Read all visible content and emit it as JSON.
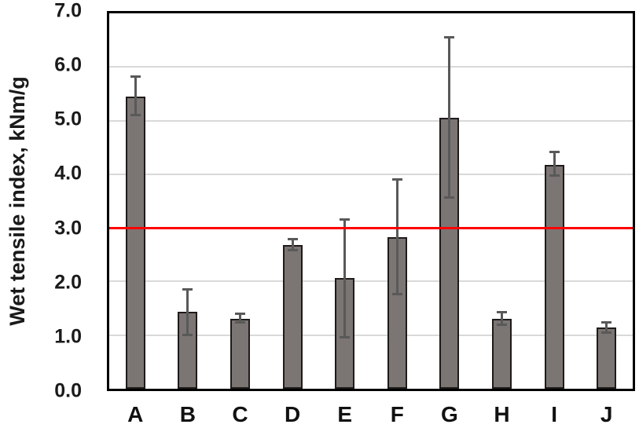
{
  "chart_data": {
    "type": "bar",
    "title": "",
    "categories": [
      "A",
      "B",
      "C",
      "D",
      "E",
      "F",
      "G",
      "H",
      "I",
      "J"
    ],
    "values": [
      5.45,
      1.43,
      1.31,
      2.68,
      2.06,
      2.83,
      5.05,
      1.31,
      4.18,
      1.14
    ],
    "error_high": [
      5.82,
      1.85,
      1.4,
      2.79,
      3.15,
      3.9,
      6.55,
      1.43,
      4.41,
      1.24
    ],
    "error_low": [
      5.1,
      1.0,
      1.24,
      2.58,
      0.96,
      1.76,
      3.56,
      1.2,
      3.97,
      1.05
    ],
    "xlabel": "",
    "ylabel": "Wet tensile index, kNm/g",
    "ylim": [
      0.0,
      7.0
    ],
    "ytick_step": 1.0,
    "ytick_labels": [
      "0.0",
      "1.0",
      "2.0",
      "3.0",
      "4.0",
      "5.0",
      "6.0",
      "7.0"
    ],
    "grid": true,
    "legend": "none",
    "reference_line": {
      "value": 3.0,
      "color": "#ff0000"
    },
    "colors": {
      "bar_fill": "#7b7573",
      "bar_border": "#1f1b1a",
      "error_bar": "#595959",
      "gridline": "#d9d9d9",
      "plot_border": "#000000",
      "text": "#1a1a1a"
    }
  }
}
